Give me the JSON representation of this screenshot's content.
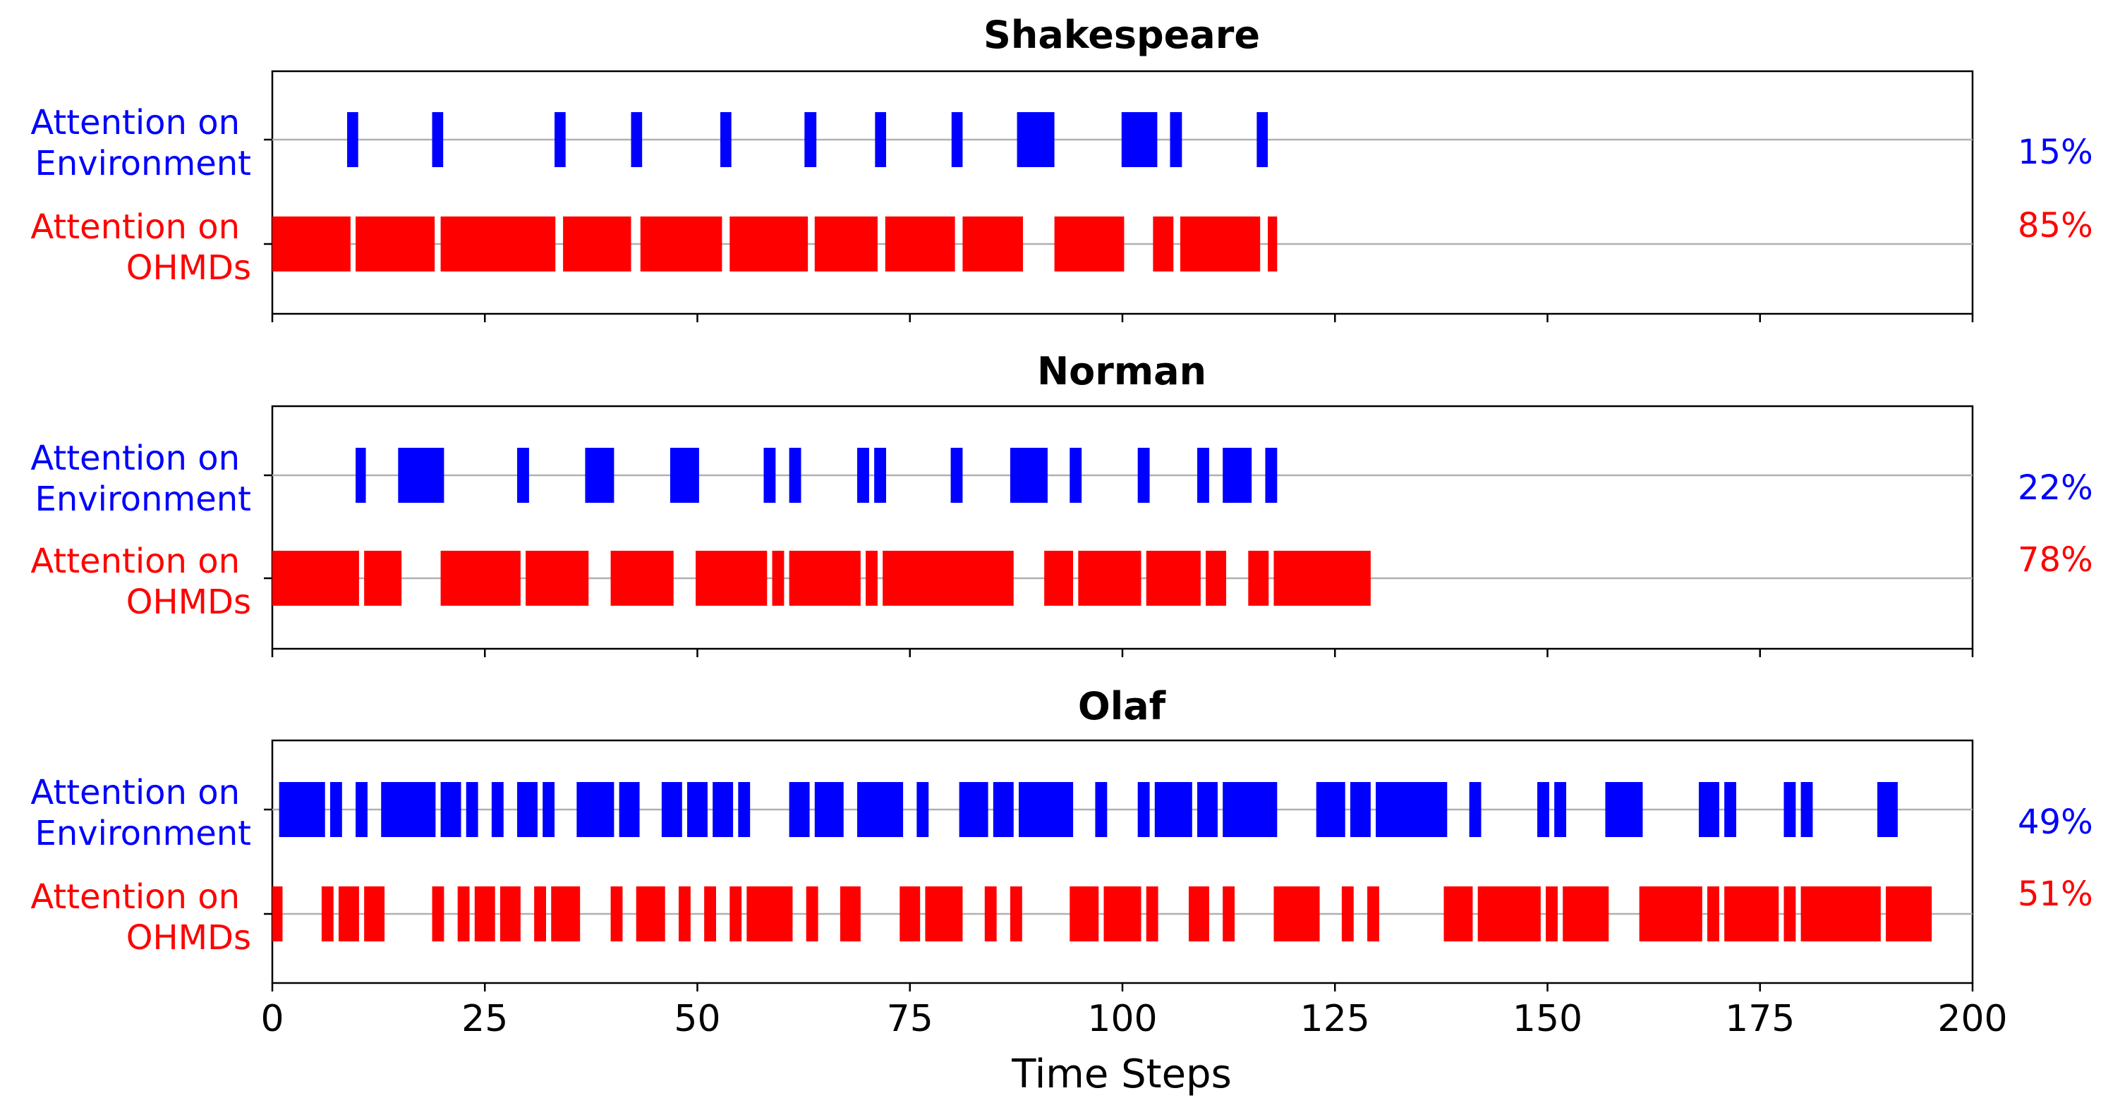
{
  "chart_data": {
    "type": "timeline",
    "xlabel": "Time Steps",
    "xlim": [
      0,
      200
    ],
    "xticks": [
      0,
      25,
      50,
      75,
      100,
      125,
      150,
      175,
      200
    ],
    "row_labels": [
      {
        "line1": "Attention on",
        "line2": "Environment",
        "color": "#0000ff"
      },
      {
        "line1": "Attention on",
        "line2": "OHMDs",
        "color": "#ff0000"
      }
    ],
    "colors": {
      "environment": "#0000ff",
      "ohmds": "#ff0000",
      "track_line": "#b0b0b0"
    },
    "panels": [
      {
        "title": "Shakespeare",
        "environment_pct": "15%",
        "ohmds_pct": "85%",
        "environment": [
          [
            8.8,
            10.1
          ],
          [
            18.8,
            20.1
          ],
          [
            33.2,
            34.5
          ],
          [
            42.2,
            43.5
          ],
          [
            52.7,
            54.0
          ],
          [
            62.6,
            64.0
          ],
          [
            70.9,
            72.2
          ],
          [
            79.9,
            81.2
          ],
          [
            87.6,
            92.0
          ],
          [
            99.9,
            104.1
          ],
          [
            105.6,
            107.0
          ],
          [
            115.8,
            117.1
          ]
        ],
        "ohmds": [
          [
            0,
            9.2
          ],
          [
            9.8,
            19.1
          ],
          [
            19.8,
            33.3
          ],
          [
            34.2,
            42.2
          ],
          [
            43.3,
            52.9
          ],
          [
            53.8,
            63.0
          ],
          [
            63.8,
            71.2
          ],
          [
            72.1,
            80.3
          ],
          [
            81.2,
            88.3
          ],
          [
            92.0,
            100.2
          ],
          [
            103.6,
            106.0
          ],
          [
            106.8,
            116.2
          ],
          [
            117.1,
            118.2
          ]
        ]
      },
      {
        "title": "Norman",
        "environment_pct": "22%",
        "ohmds_pct": "78%",
        "environment": [
          [
            9.8,
            11.0
          ],
          [
            14.8,
            20.2
          ],
          [
            28.8,
            30.2
          ],
          [
            36.8,
            40.2
          ],
          [
            46.8,
            50.2
          ],
          [
            57.8,
            59.2
          ],
          [
            60.8,
            62.2
          ],
          [
            68.8,
            70.2
          ],
          [
            70.8,
            72.2
          ],
          [
            79.8,
            81.2
          ],
          [
            86.8,
            91.2
          ],
          [
            93.8,
            95.2
          ],
          [
            101.8,
            103.2
          ],
          [
            108.8,
            110.2
          ],
          [
            111.8,
            115.2
          ],
          [
            116.8,
            118.2
          ]
        ],
        "ohmds": [
          [
            0,
            10.2
          ],
          [
            10.8,
            15.2
          ],
          [
            19.8,
            29.2
          ],
          [
            29.8,
            37.2
          ],
          [
            39.8,
            47.2
          ],
          [
            49.8,
            58.2
          ],
          [
            58.8,
            60.2
          ],
          [
            60.8,
            69.2
          ],
          [
            69.8,
            71.2
          ],
          [
            71.8,
            87.2
          ],
          [
            90.8,
            94.2
          ],
          [
            94.8,
            102.2
          ],
          [
            102.8,
            109.2
          ],
          [
            109.8,
            112.2
          ],
          [
            114.8,
            117.2
          ],
          [
            117.8,
            129.2
          ]
        ]
      },
      {
        "title": "Olaf",
        "environment_pct": "49%",
        "ohmds_pct": "51%",
        "environment": [
          [
            0.8,
            6.2
          ],
          [
            6.8,
            8.2
          ],
          [
            9.8,
            11.2
          ],
          [
            12.8,
            19.2
          ],
          [
            19.8,
            22.2
          ],
          [
            22.8,
            24.2
          ],
          [
            25.8,
            27.2
          ],
          [
            28.8,
            31.2
          ],
          [
            31.8,
            33.2
          ],
          [
            35.8,
            40.2
          ],
          [
            40.8,
            43.2
          ],
          [
            45.8,
            48.2
          ],
          [
            48.8,
            51.2
          ],
          [
            51.8,
            54.2
          ],
          [
            54.8,
            56.2
          ],
          [
            60.8,
            63.2
          ],
          [
            63.8,
            67.2
          ],
          [
            68.8,
            74.2
          ],
          [
            75.8,
            77.2
          ],
          [
            80.8,
            84.2
          ],
          [
            84.8,
            87.2
          ],
          [
            87.8,
            94.2
          ],
          [
            96.8,
            98.2
          ],
          [
            101.8,
            103.2
          ],
          [
            103.8,
            108.2
          ],
          [
            108.8,
            111.2
          ],
          [
            111.8,
            118.2
          ],
          [
            122.8,
            126.2
          ],
          [
            126.8,
            129.2
          ],
          [
            129.8,
            138.2
          ],
          [
            140.8,
            142.2
          ],
          [
            148.8,
            150.2
          ],
          [
            150.8,
            152.2
          ],
          [
            156.8,
            161.2
          ],
          [
            167.8,
            170.2
          ],
          [
            170.8,
            172.2
          ],
          [
            177.8,
            179.2
          ],
          [
            179.8,
            181.2
          ],
          [
            188.8,
            191.2
          ]
        ],
        "ohmds": [
          [
            0,
            1.2
          ],
          [
            5.8,
            7.2
          ],
          [
            7.8,
            10.2
          ],
          [
            10.8,
            13.2
          ],
          [
            18.8,
            20.2
          ],
          [
            21.8,
            23.2
          ],
          [
            23.8,
            26.2
          ],
          [
            26.8,
            29.2
          ],
          [
            30.8,
            32.2
          ],
          [
            32.8,
            36.2
          ],
          [
            39.8,
            41.2
          ],
          [
            42.8,
            46.2
          ],
          [
            47.8,
            49.2
          ],
          [
            50.8,
            52.2
          ],
          [
            53.8,
            55.2
          ],
          [
            55.8,
            61.2
          ],
          [
            62.8,
            64.2
          ],
          [
            66.8,
            69.2
          ],
          [
            73.8,
            76.2
          ],
          [
            76.8,
            81.2
          ],
          [
            83.8,
            85.2
          ],
          [
            86.8,
            88.2
          ],
          [
            93.8,
            97.2
          ],
          [
            97.8,
            102.2
          ],
          [
            102.8,
            104.2
          ],
          [
            107.8,
            110.2
          ],
          [
            111.8,
            113.2
          ],
          [
            117.8,
            123.2
          ],
          [
            125.8,
            127.2
          ],
          [
            128.8,
            130.2
          ],
          [
            137.8,
            141.2
          ],
          [
            141.8,
            149.2
          ],
          [
            149.8,
            151.2
          ],
          [
            151.8,
            157.2
          ],
          [
            160.8,
            168.2
          ],
          [
            168.8,
            170.2
          ],
          [
            170.8,
            177.2
          ],
          [
            177.8,
            179.2
          ],
          [
            179.8,
            189.2
          ],
          [
            189.8,
            195.2
          ]
        ]
      }
    ]
  }
}
